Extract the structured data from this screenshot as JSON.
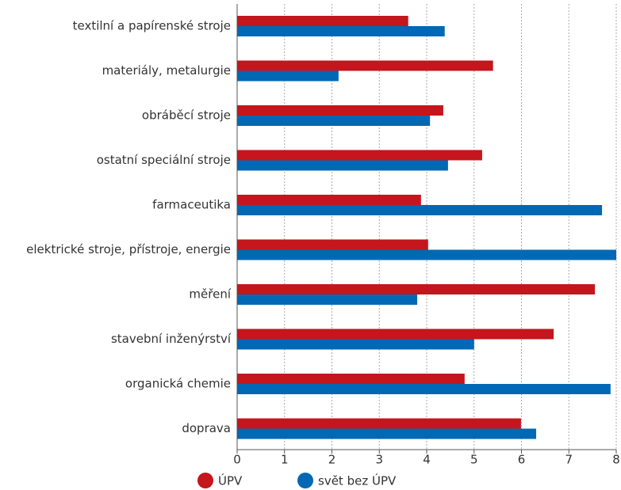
{
  "chart_data": {
    "type": "bar",
    "orientation": "horizontal",
    "categories": [
      "textilní a papírenské stroje",
      "materiály, metalurgie",
      "obráběcí stroje",
      "ostatní speciální stroje",
      "farmaceutika",
      "elektrické stroje, přístroje, energie",
      "měření",
      "stavební inženýrství",
      "organická chemie",
      "doprava"
    ],
    "series": [
      {
        "name": "ÚPV",
        "color": "#c4161c",
        "values": [
          3.61,
          5.4,
          4.35,
          5.17,
          3.88,
          4.03,
          7.55,
          6.68,
          4.8,
          5.99
        ]
      },
      {
        "name": "svět bez ÚPV",
        "color": "#0068b4",
        "values": [
          4.38,
          2.14,
          4.07,
          4.45,
          7.7,
          8.0,
          3.8,
          5.0,
          7.88,
          6.31
        ]
      }
    ],
    "xlim": [
      0,
      8
    ],
    "xticks": [
      0,
      1,
      2,
      3,
      4,
      5,
      6,
      7,
      8
    ],
    "grid": true,
    "legend": "bottom"
  }
}
